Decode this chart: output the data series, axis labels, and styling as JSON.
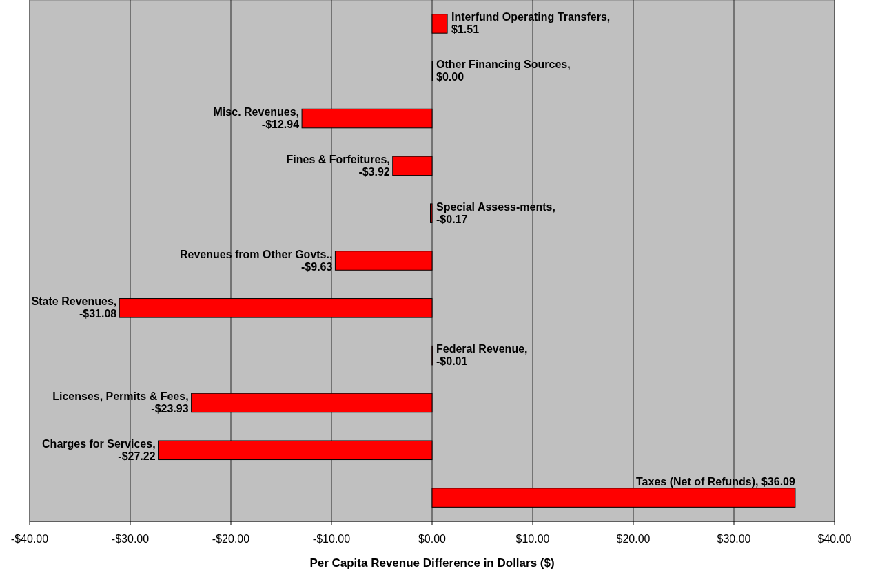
{
  "chart_data": {
    "type": "bar",
    "orientation": "horizontal",
    "xlabel": "Per Capita Revenue Difference in Dollars ($)",
    "categories": [
      null,
      null,
      null,
      null,
      null,
      null,
      null,
      null,
      null,
      null,
      null
    ],
    "values": [
      1.51,
      0,
      -12.94,
      -3.92,
      -0.17,
      -9.63,
      -31.08,
      -0.01,
      -23.93,
      -27.22,
      36.09
    ],
    "value_labels": [
      "Interfund Operating Transfers, $1.51",
      "Other Financing Sources, $0.00",
      "Misc. Revenues, -$12.94",
      "Fines & Forfeitures, -$3.92",
      "Special Assess-ments, -$0.17",
      "Revenues from Other Govts., -$9.63",
      "State Revenues, -$31.08",
      "Federal Revenue, -$0.01",
      "Licenses, Permits & Fees, -$23.93",
      "Charges for Services, -$27.22",
      "Taxes (Net of Refunds), $36.09"
    ],
    "color": "#ff0000",
    "xlim": [
      -40,
      40
    ],
    "xticks": [
      {
        "value": -40,
        "label": "-$40.00"
      },
      {
        "value": -30,
        "label": "-$30.00"
      },
      {
        "value": -20,
        "label": "-$20.00"
      },
      {
        "value": -10,
        "label": "-$10.00"
      },
      {
        "value": 0,
        "label": "$0.00"
      },
      {
        "value": 10,
        "label": "$10.00"
      },
      {
        "value": 20,
        "label": "$20.00"
      },
      {
        "value": 30,
        "label": "$30.00"
      },
      {
        "value": 40,
        "label": "$40.00"
      }
    ],
    "grid": "x",
    "tick_labels": "x"
  }
}
